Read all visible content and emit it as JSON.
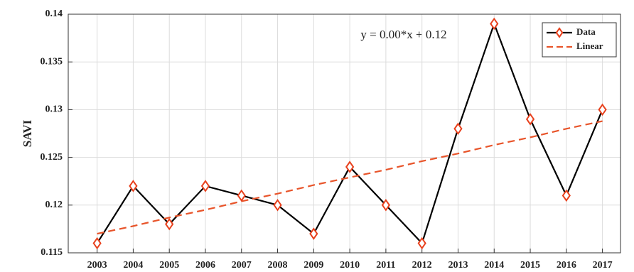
{
  "chart_data": {
    "type": "line",
    "ylabel": "SAVI",
    "annotation": "y = 0.00*x + 0.12",
    "x": [
      2003,
      2004,
      2005,
      2006,
      2007,
      2008,
      2009,
      2010,
      2011,
      2012,
      2013,
      2014,
      2015,
      2016,
      2017
    ],
    "series": [
      {
        "name": "Data",
        "color": "#000000",
        "marker_color": "#e8401c",
        "marker": "diamond",
        "values": [
          0.116,
          0.122,
          0.118,
          0.122,
          0.121,
          0.12,
          0.117,
          0.124,
          0.12,
          0.116,
          0.128,
          0.139,
          0.129,
          0.121,
          0.13
        ]
      },
      {
        "name": "Linear",
        "color": "#e8542a",
        "dashed": true,
        "values": [
          0.117,
          0.1178,
          0.1187,
          0.1195,
          0.1204,
          0.1212,
          0.1221,
          0.1229,
          0.1237,
          0.1246,
          0.1254,
          0.1263,
          0.1271,
          0.128,
          0.1288
        ]
      }
    ],
    "xlim": [
      2002.2,
      2017.5
    ],
    "xticks": [
      2003,
      2004,
      2005,
      2006,
      2007,
      2008,
      2009,
      2010,
      2011,
      2012,
      2013,
      2014,
      2015,
      2016,
      2017
    ],
    "ylim": [
      0.115,
      0.14
    ],
    "yticks": [
      0.115,
      0.12,
      0.125,
      0.13,
      0.135,
      0.14
    ],
    "grid": true,
    "legend": "northeast"
  }
}
